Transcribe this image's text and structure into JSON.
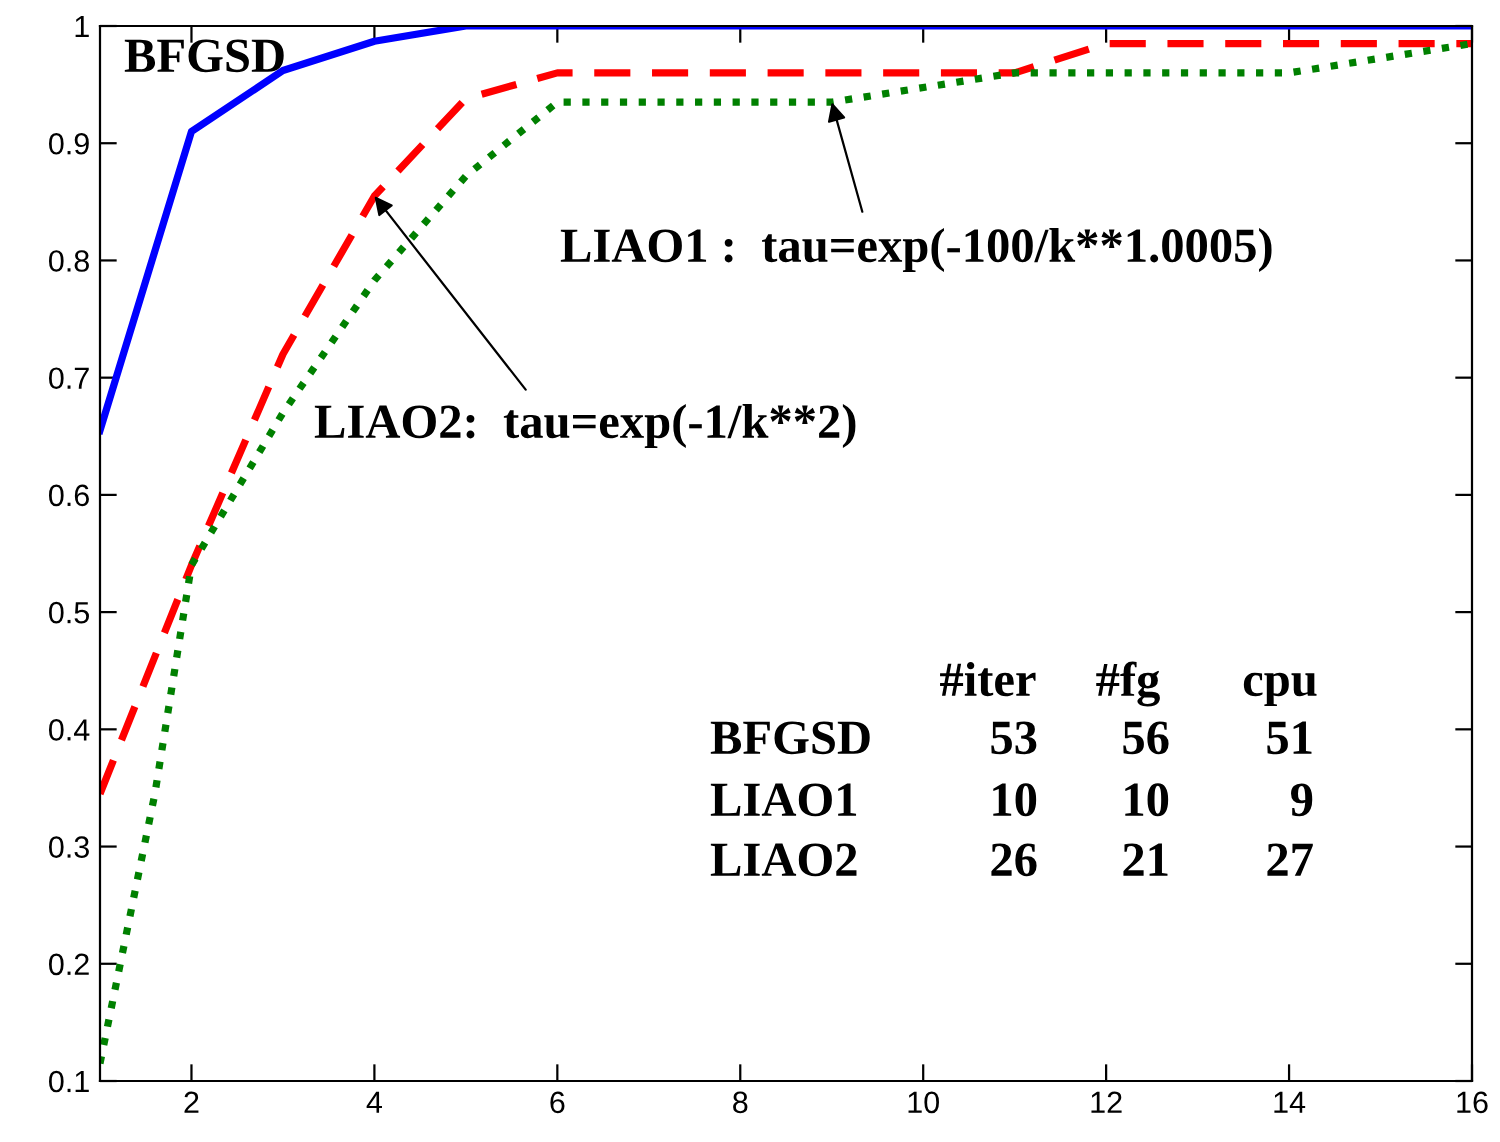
{
  "chart_data": {
    "type": "line",
    "xlim": [
      1,
      16
    ],
    "ylim": [
      0.1,
      1
    ],
    "xticks": [
      2,
      4,
      6,
      8,
      10,
      12,
      14,
      16
    ],
    "yticks": [
      0.1,
      0.2,
      0.3,
      0.4,
      0.5,
      0.6,
      0.7,
      0.8,
      0.9,
      1
    ],
    "grid": false,
    "legend": false,
    "marker": "none",
    "series": [
      {
        "color": "#0000ff",
        "line_style": "solid",
        "x": [
          1,
          2,
          3,
          4,
          5,
          16
        ],
        "values": [
          0.655,
          0.91,
          0.962,
          0.987,
          1,
          1
        ]
      },
      {
        "color": "#ff0000",
        "line_style": "dashed",
        "x": [
          1,
          2,
          3,
          4,
          5,
          6,
          11,
          12,
          16
        ],
        "values": [
          0.345,
          0.54,
          0.72,
          0.855,
          0.938,
          0.96,
          0.96,
          0.985,
          0.985
        ]
      },
      {
        "color": "#008000",
        "line_style": "dotted",
        "x": [
          1,
          1.6,
          2,
          3,
          4,
          5,
          6,
          9,
          11,
          14,
          16
        ],
        "values": [
          0.115,
          0.345,
          0.54,
          0.67,
          0.783,
          0.872,
          0.935,
          0.935,
          0.96,
          0.96,
          0.985
        ]
      }
    ],
    "annotations": [
      "BFGSD",
      {
        "text": "LIAO1 :  tau=exp(-100/k**1.0005)",
        "x": 9,
        "y": 0.935
      },
      {
        "text": "LIAO2:  tau=exp(-1/k**2)",
        "x": 4,
        "y": 0.855
      },
      "#iter",
      "#fg",
      "cpu",
      "BFGSD",
      "53",
      "56",
      "51",
      "LIAO1",
      "10",
      "10",
      "9",
      "LIAO2",
      "26",
      "21",
      "27"
    ]
  }
}
